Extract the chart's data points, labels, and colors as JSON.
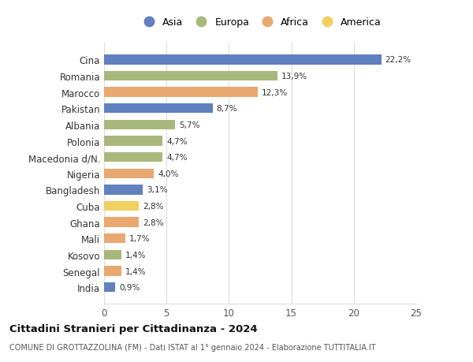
{
  "categories": [
    "Cina",
    "Romania",
    "Marocco",
    "Pakistan",
    "Albania",
    "Polonia",
    "Macedonia d/N.",
    "Nigeria",
    "Bangladesh",
    "Cuba",
    "Ghana",
    "Mali",
    "Kosovo",
    "Senegal",
    "India"
  ],
  "values": [
    22.2,
    13.9,
    12.3,
    8.7,
    5.7,
    4.7,
    4.7,
    4.0,
    3.1,
    2.8,
    2.8,
    1.7,
    1.4,
    1.4,
    0.9
  ],
  "labels": [
    "22,2%",
    "13,9%",
    "12,3%",
    "8,7%",
    "5,7%",
    "4,7%",
    "4,7%",
    "4,0%",
    "3,1%",
    "2,8%",
    "2,8%",
    "1,7%",
    "1,4%",
    "1,4%",
    "0,9%"
  ],
  "continents": [
    "Asia",
    "Europa",
    "Africa",
    "Asia",
    "Europa",
    "Europa",
    "Europa",
    "Africa",
    "Asia",
    "America",
    "Africa",
    "Africa",
    "Europa",
    "Africa",
    "Asia"
  ],
  "colors": {
    "Asia": "#6080c0",
    "Europa": "#a8b87a",
    "Africa": "#e8a870",
    "America": "#f0d060"
  },
  "legend_order": [
    "Asia",
    "Europa",
    "Africa",
    "America"
  ],
  "title": "Cittadini Stranieri per Cittadinanza - 2024",
  "subtitle": "COMUNE DI GROTTAZZOLINA (FM) - Dati ISTAT al 1° gennaio 2024 - Elaborazione TUTTITALIA.IT",
  "xlim": [
    0,
    25
  ],
  "xticks": [
    0,
    5,
    10,
    15,
    20,
    25
  ],
  "background_color": "#ffffff",
  "grid_color": "#dddddd"
}
